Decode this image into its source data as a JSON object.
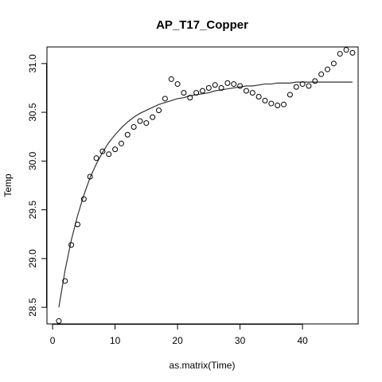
{
  "chart_data": {
    "type": "scatter",
    "title": "AP_T17_Copper",
    "xlabel": "as.matrix(Time)",
    "ylabel": "Temp",
    "xlim": [
      -0.9,
      48.9
    ],
    "ylim": [
      28.33,
      31.17
    ],
    "x_ticks": [
      "0",
      "10",
      "20",
      "30",
      "40"
    ],
    "y_ticks": [
      "28.5",
      "29.0",
      "29.5",
      "30.0",
      "30.5",
      "31.0"
    ],
    "grid": false,
    "legend": "none",
    "series": [
      {
        "kind": "points",
        "marker": "open-circle",
        "x": [
          1,
          2,
          3,
          4,
          5,
          6,
          7,
          8,
          9,
          10,
          11,
          12,
          13,
          14,
          15,
          16,
          17,
          18,
          19,
          20,
          21,
          22,
          23,
          24,
          25,
          26,
          27,
          28,
          29,
          30,
          31,
          32,
          33,
          34,
          35,
          36,
          37,
          38,
          39,
          40,
          41,
          42,
          43,
          44,
          45,
          46,
          47,
          48
        ],
        "y": [
          28.36,
          28.77,
          29.14,
          29.35,
          29.61,
          29.84,
          30.03,
          30.1,
          30.07,
          30.12,
          30.18,
          30.27,
          30.35,
          30.41,
          30.39,
          30.45,
          30.52,
          30.64,
          30.84,
          30.79,
          30.7,
          30.65,
          30.7,
          30.72,
          30.75,
          30.78,
          30.75,
          30.8,
          30.79,
          30.77,
          30.72,
          30.7,
          30.66,
          30.62,
          30.59,
          30.57,
          30.58,
          30.68,
          30.76,
          30.79,
          30.77,
          30.82,
          30.89,
          30.94,
          31.0,
          31.1,
          31.14,
          31.11
        ]
      },
      {
        "kind": "line",
        "x": [
          1,
          2,
          3,
          4,
          5,
          6,
          7,
          8,
          9,
          10,
          11,
          12,
          13,
          14,
          15,
          16,
          17,
          18,
          19,
          20,
          21,
          22,
          23,
          24,
          25,
          26,
          27,
          28,
          29,
          30,
          31,
          32,
          33,
          34,
          35,
          36,
          37,
          38,
          39,
          40,
          41,
          42,
          43,
          44,
          45,
          46,
          47,
          48
        ],
        "y": [
          28.5,
          28.88,
          29.19,
          29.44,
          29.65,
          29.83,
          29.97,
          30.09,
          30.19,
          30.27,
          30.34,
          30.4,
          30.45,
          30.49,
          30.52,
          30.55,
          30.58,
          30.6,
          30.62,
          30.64,
          30.65,
          30.67,
          30.68,
          30.69,
          30.7,
          30.72,
          30.73,
          30.74,
          30.75,
          30.76,
          30.77,
          30.77,
          30.78,
          30.79,
          30.79,
          30.8,
          30.8,
          30.8,
          30.81,
          30.81,
          30.81,
          30.81,
          30.81,
          30.81,
          30.81,
          30.81,
          30.81,
          30.81
        ]
      }
    ]
  }
}
